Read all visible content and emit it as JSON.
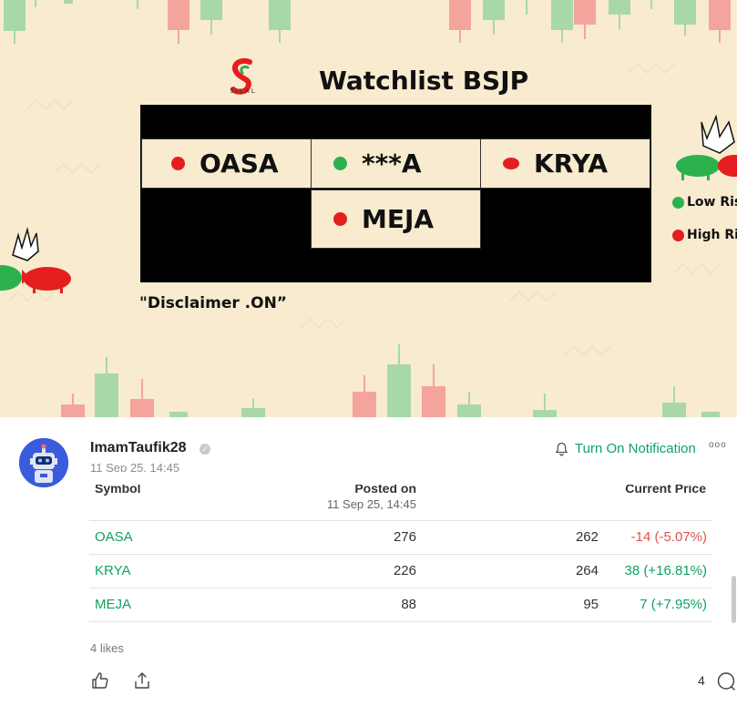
{
  "banner": {
    "title": "Watchlist BSJP",
    "logo_text": "SILAL",
    "cells": [
      {
        "symbol": "OASA",
        "risk": "red"
      },
      {
        "symbol": "***A",
        "risk": "green"
      },
      {
        "symbol": "KRYA",
        "risk": "red"
      },
      {
        "symbol": "MEJA",
        "risk": "red"
      }
    ],
    "disclaimer": "\"Disclaimer .ON”",
    "legend_low": "Low Ris",
    "legend_high": "High Ri",
    "colors": {
      "red": "#e41e1e",
      "green": "#2bb24c",
      "background": "#f8ebcf"
    }
  },
  "post": {
    "username": "ImamTaufik28",
    "verified_icon": "check-badge-icon",
    "timestamp": "11 Sep 25, 14:45",
    "notify_label": "Turn On Notification",
    "more_label": "ooo"
  },
  "table": {
    "headers": {
      "symbol": "Symbol",
      "posted": "Posted on",
      "posted_sub": "11 Sep 25, 14:45",
      "current": "Current Price"
    },
    "rows": [
      {
        "symbol": "OASA",
        "posted": "276",
        "current": "262",
        "change": "-14 (-5.07%)",
        "direction": "neg"
      },
      {
        "symbol": "KRYA",
        "posted": "226",
        "current": "264",
        "change": "38 (+16.81%)",
        "direction": "pos"
      },
      {
        "symbol": "MEJA",
        "posted": "88",
        "current": "95",
        "change": "7 (+7.95%)",
        "direction": "pos"
      }
    ]
  },
  "footer": {
    "likes": "4 likes",
    "comment_count": "4"
  },
  "accent": "#0fa262"
}
